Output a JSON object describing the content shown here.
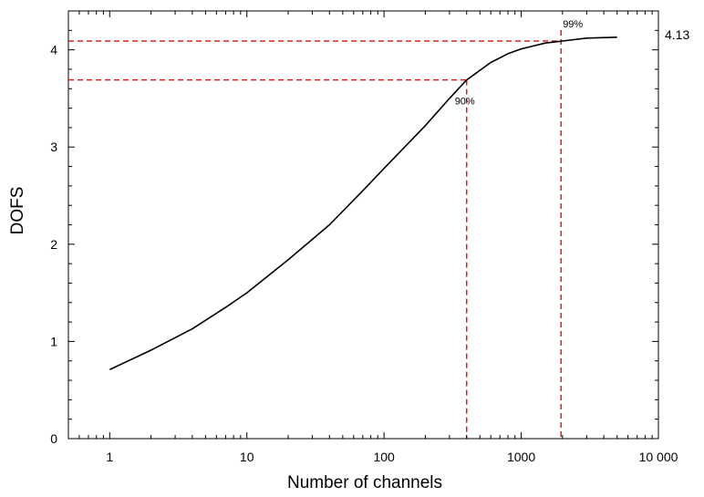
{
  "chart_data": {
    "type": "line",
    "title": "",
    "xlabel": "Number of channels",
    "ylabel": "DOFS",
    "xscale": "log",
    "xlim": [
      0.5,
      10000
    ],
    "ylim": [
      0,
      4.4
    ],
    "x_ticks": [
      1,
      10,
      100,
      1000,
      10000
    ],
    "x_tick_labels": [
      "1",
      "10",
      "100",
      "1000",
      "10 000"
    ],
    "y_ticks": [
      0,
      1,
      2,
      3,
      4
    ],
    "y_tick_labels": [
      "0",
      "1",
      "2",
      "3",
      "4"
    ],
    "grid": false,
    "legend": "none",
    "series": [
      {
        "color": "#000000",
        "x": [
          1,
          2,
          4,
          7,
          10,
          20,
          40,
          70,
          100,
          200,
          300,
          400,
          600,
          800,
          1000,
          1500,
          2000,
          3000,
          5000
        ],
        "y": [
          0.71,
          0.91,
          1.13,
          1.35,
          1.5,
          1.84,
          2.2,
          2.55,
          2.78,
          3.22,
          3.5,
          3.69,
          3.87,
          3.96,
          4.01,
          4.07,
          4.09,
          4.12,
          4.13
        ]
      }
    ],
    "reference_lines": [
      {
        "label": "90%",
        "x": 400,
        "y": 3.69,
        "color": "#d62020"
      },
      {
        "label": "99%",
        "x": 1950,
        "y": 4.09,
        "color": "#d62020"
      }
    ],
    "annotations": {
      "max_value_label": "4.13"
    }
  }
}
